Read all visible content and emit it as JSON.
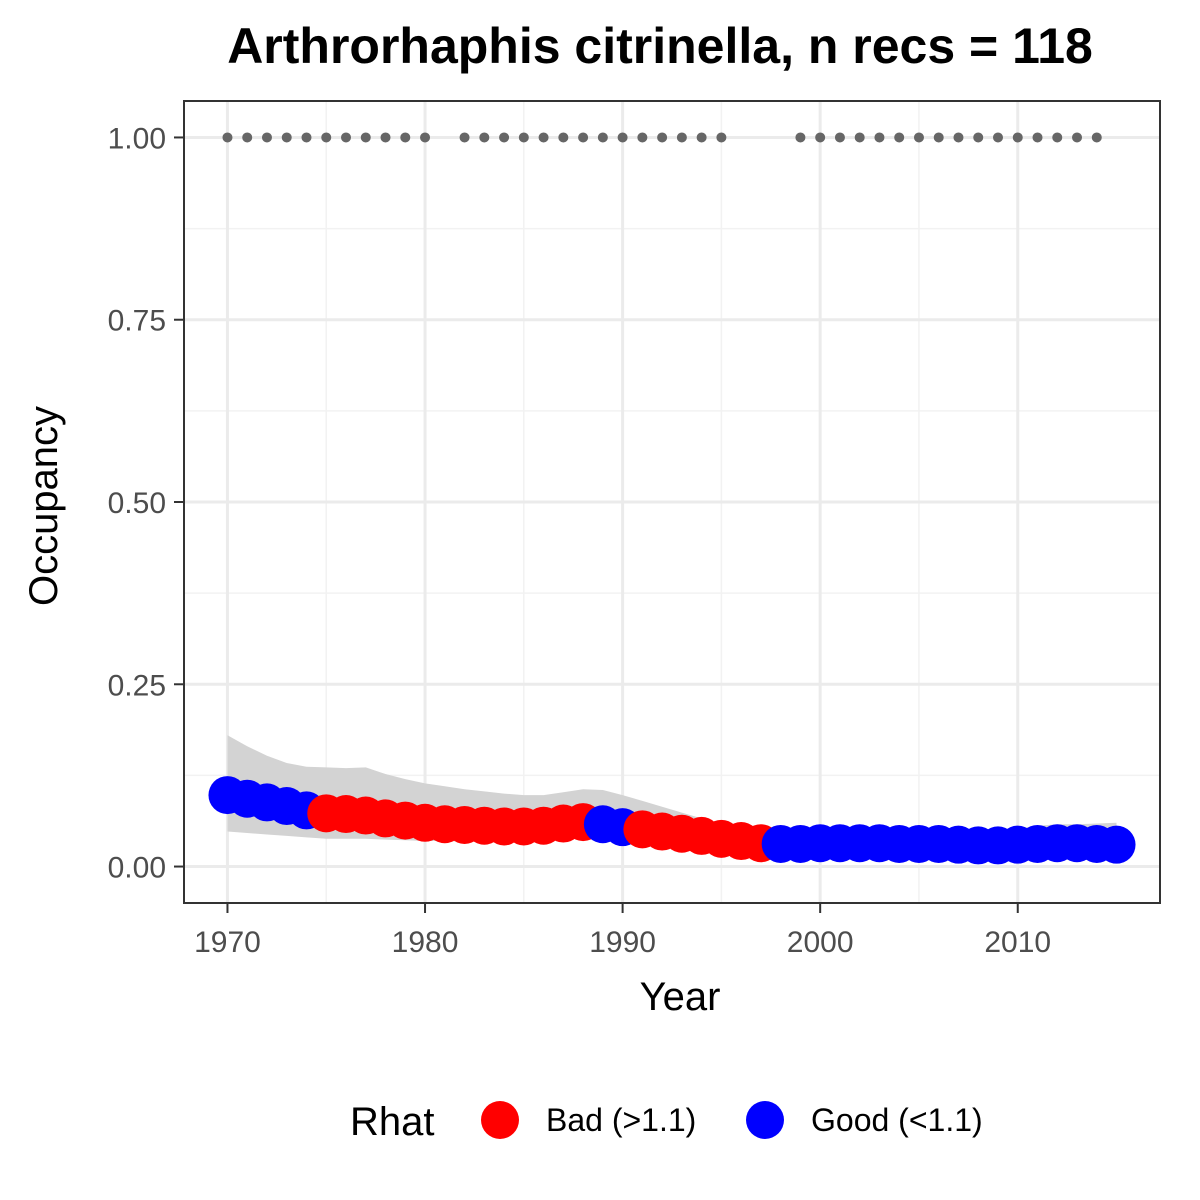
{
  "chart_data": {
    "type": "line",
    "title": "Arthrorhaphis citrinella, n recs = 118",
    "xlabel": "Year",
    "ylabel": "Occupancy",
    "xlim": [
      1967.8,
      2017.2
    ],
    "ylim": [
      -0.05,
      1.05
    ],
    "x_ticks": [
      1970,
      1980,
      1990,
      2000,
      2010
    ],
    "x_tick_labels": [
      "1970",
      "1980",
      "1990",
      "2000",
      "2010"
    ],
    "y_ticks": [
      0,
      0.25,
      0.5,
      0.75,
      1
    ],
    "y_tick_labels": [
      "0.00",
      "0.25",
      "0.50",
      "0.75",
      "1.00"
    ],
    "grid": true,
    "legend": {
      "title": "Rhat",
      "position": "bottom",
      "entries": [
        {
          "label": "Bad (>1.1)",
          "color": "#ff0000"
        },
        {
          "label": "Good (<1.1)",
          "color": "#0000ff"
        }
      ]
    },
    "colors": {
      "Bad": "#ff0000",
      "Good": "#0000ff",
      "ribbon": "#d3d3d3",
      "records": "#666666"
    },
    "series": [
      {
        "x": [
          1970,
          1971,
          1972,
          1973,
          1974,
          1975,
          1976,
          1977,
          1978,
          1979,
          1980,
          1981,
          1982,
          1983,
          1984,
          1985,
          1986,
          1987,
          1988,
          1989,
          1990,
          1991,
          1992,
          1993,
          1994,
          1995,
          1996,
          1997,
          1998,
          1999,
          2000,
          2001,
          2002,
          2003,
          2004,
          2005,
          2006,
          2007,
          2008,
          2009,
          2010,
          2011,
          2012,
          2013,
          2014,
          2015
        ],
        "y": [
          0.098,
          0.093,
          0.088,
          0.083,
          0.077,
          0.073,
          0.072,
          0.07,
          0.066,
          0.063,
          0.06,
          0.058,
          0.057,
          0.056,
          0.055,
          0.055,
          0.056,
          0.059,
          0.061,
          0.058,
          0.054,
          0.051,
          0.048,
          0.045,
          0.042,
          0.038,
          0.035,
          0.032,
          0.031,
          0.031,
          0.032,
          0.032,
          0.032,
          0.032,
          0.031,
          0.031,
          0.031,
          0.03,
          0.029,
          0.029,
          0.03,
          0.031,
          0.032,
          0.032,
          0.031,
          0.03
        ],
        "rhat": [
          "Good",
          "Good",
          "Good",
          "Good",
          "Good",
          "Bad",
          "Bad",
          "Bad",
          "Bad",
          "Bad",
          "Bad",
          "Bad",
          "Bad",
          "Bad",
          "Bad",
          "Bad",
          "Bad",
          "Bad",
          "Bad",
          "Good",
          "Good",
          "Bad",
          "Bad",
          "Bad",
          "Bad",
          "Bad",
          "Bad",
          "Bad",
          "Good",
          "Good",
          "Good",
          "Good",
          "Good",
          "Good",
          "Good",
          "Good",
          "Good",
          "Good",
          "Good",
          "Good",
          "Good",
          "Good",
          "Good",
          "Good",
          "Good",
          "Good"
        ],
        "lower": [
          0.048,
          0.046,
          0.044,
          0.042,
          0.04,
          0.038,
          0.038,
          0.038,
          0.037,
          0.036,
          0.035,
          0.035,
          0.034,
          0.034,
          0.034,
          0.035,
          0.036,
          0.038,
          0.04,
          0.038,
          0.034,
          0.031,
          0.028,
          0.026,
          0.024,
          0.022,
          0.02,
          0.019,
          0.019,
          0.019,
          0.02,
          0.02,
          0.02,
          0.02,
          0.02,
          0.019,
          0.019,
          0.019,
          0.018,
          0.018,
          0.018,
          0.019,
          0.02,
          0.02,
          0.019,
          0.018
        ],
        "upper": [
          0.18,
          0.165,
          0.152,
          0.142,
          0.137,
          0.136,
          0.135,
          0.136,
          0.127,
          0.12,
          0.114,
          0.11,
          0.106,
          0.103,
          0.1,
          0.098,
          0.098,
          0.102,
          0.106,
          0.105,
          0.098,
          0.09,
          0.082,
          0.074,
          0.066,
          0.058,
          0.054,
          0.052,
          0.051,
          0.051,
          0.052,
          0.053,
          0.054,
          0.054,
          0.053,
          0.052,
          0.052,
          0.051,
          0.05,
          0.05,
          0.052,
          0.056,
          0.058,
          0.058,
          0.059,
          0.06
        ]
      }
    ],
    "records": {
      "y": 1.0,
      "years": [
        1970,
        1971,
        1972,
        1973,
        1974,
        1975,
        1976,
        1977,
        1978,
        1979,
        1980,
        1982,
        1983,
        1984,
        1985,
        1986,
        1987,
        1988,
        1989,
        1990,
        1991,
        1992,
        1993,
        1994,
        1995,
        1999,
        2000,
        2001,
        2002,
        2003,
        2004,
        2005,
        2006,
        2007,
        2008,
        2009,
        2010,
        2011,
        2012,
        2013,
        2014
      ]
    }
  }
}
